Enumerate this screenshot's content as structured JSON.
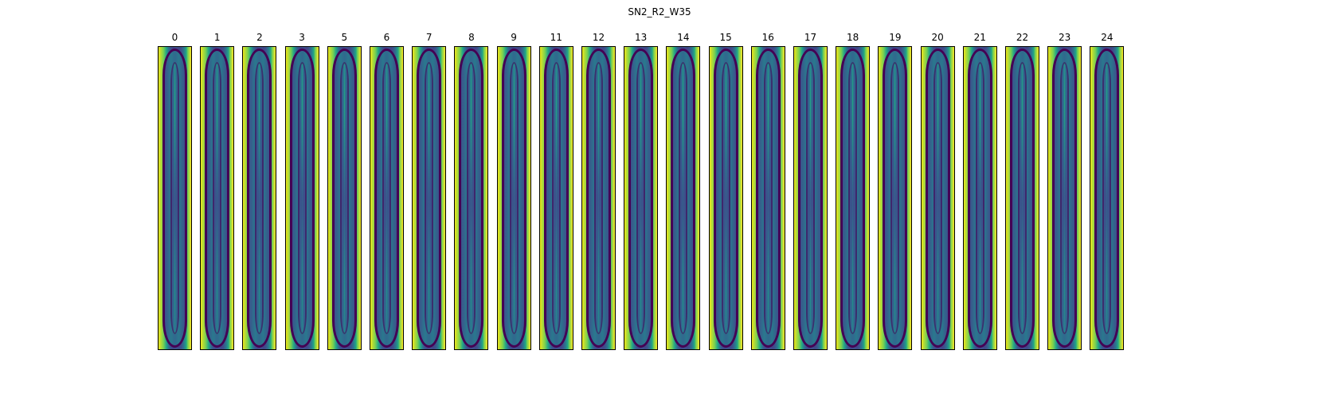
{
  "figure": {
    "title": "SN2_R2_W35",
    "colormap": "viridis",
    "panels": [
      "0",
      "1",
      "2",
      "3",
      "5",
      "6",
      "7",
      "8",
      "9",
      "11",
      "12",
      "13",
      "14",
      "15",
      "16",
      "17",
      "18",
      "19",
      "20",
      "21",
      "22",
      "23",
      "24"
    ]
  }
}
